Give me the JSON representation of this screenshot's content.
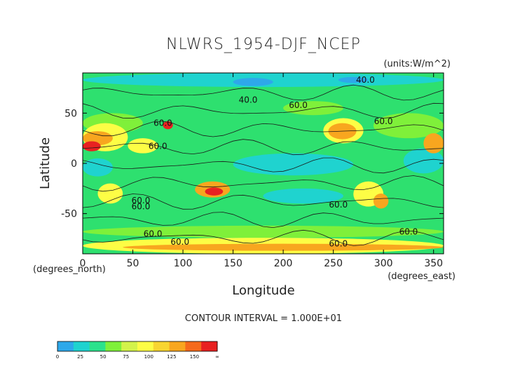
{
  "chart_data": {
    "type": "heatmap",
    "title": "NLWRS_1954-DJF_NCEP",
    "units_label": "(units:W/m^2)",
    "xlabel": "Longitude",
    "ylabel": "Latitude",
    "xunit_label": "(degrees_east)",
    "yunit_label": "(degrees_north)",
    "xlim": [
      0,
      360
    ],
    "ylim": [
      -90,
      90
    ],
    "xticks": [
      0,
      50,
      100,
      150,
      200,
      250,
      300,
      350
    ],
    "yticks": [
      50,
      0,
      -50
    ],
    "contour_interval_text": "CONTOUR INTERVAL = 1.000E+01",
    "contour_labels": [
      {
        "text": "40.0",
        "x": 282,
        "y": 83
      },
      {
        "text": "40.0",
        "x": 165,
        "y": 63
      },
      {
        "text": "60.0",
        "x": 215,
        "y": 58
      },
      {
        "text": "60.0",
        "x": 300,
        "y": 42
      },
      {
        "text": "60.0",
        "x": 80,
        "y": 40
      },
      {
        "text": "60.0",
        "x": 75,
        "y": 17
      },
      {
        "text": "60.0",
        "x": 58,
        "y": -37
      },
      {
        "text": "60.0",
        "x": 58,
        "y": -43
      },
      {
        "text": "60.0",
        "x": 255,
        "y": -41
      },
      {
        "text": "60.0",
        "x": 70,
        "y": -70
      },
      {
        "text": "60.0",
        "x": 325,
        "y": -68
      },
      {
        "text": "60.0",
        "x": 97,
        "y": -78
      },
      {
        "text": "60.0",
        "x": 255,
        "y": -80
      }
    ],
    "colorbar": {
      "colors": [
        "#2ea8ea",
        "#1fd3cf",
        "#2be28c",
        "#7ff03a",
        "#d3f34a",
        "#fdfd45",
        "#f8d530",
        "#f8a61f",
        "#f56a1c",
        "#e82121"
      ],
      "labels": [
        "0",
        "25",
        "50",
        "75",
        "100",
        "125",
        "150",
        "∞"
      ]
    },
    "colors": {
      "base": "#2ee06f",
      "low": "#1fd3cf",
      "lower": "#2ea8ea",
      "mid": "#7ff03a",
      "high": "#fdfd45",
      "higher": "#f8a61f",
      "highest": "#e82121"
    },
    "regions": [
      {
        "level": "low",
        "lon": 0,
        "lat": 90,
        "w": 360,
        "h": 14
      },
      {
        "level": "low",
        "lon": 150,
        "lat": 10,
        "w": 120,
        "h": 22
      },
      {
        "level": "low",
        "lon": 320,
        "lat": 15,
        "w": 40,
        "h": 25
      },
      {
        "level": "low",
        "lon": 0,
        "lat": 5,
        "w": 30,
        "h": 18
      },
      {
        "level": "low",
        "lon": 180,
        "lat": -25,
        "w": 80,
        "h": 15
      },
      {
        "level": "lower",
        "lon": 150,
        "lat": 85,
        "w": 40,
        "h": 8
      },
      {
        "level": "lower",
        "lon": 255,
        "lat": 86,
        "w": 30,
        "h": 6
      },
      {
        "level": "mid",
        "lon": 0,
        "lat": 50,
        "w": 60,
        "h": 20
      },
      {
        "level": "mid",
        "lon": 200,
        "lat": 62,
        "w": 60,
        "h": 14
      },
      {
        "level": "mid",
        "lon": 290,
        "lat": 50,
        "w": 70,
        "h": 25
      },
      {
        "level": "mid",
        "lon": 0,
        "lat": -62,
        "w": 360,
        "h": 12
      },
      {
        "level": "high",
        "lon": 0,
        "lat": 40,
        "w": 45,
        "h": 28
      },
      {
        "level": "high",
        "lon": 45,
        "lat": 25,
        "w": 30,
        "h": 15
      },
      {
        "level": "high",
        "lon": 240,
        "lat": 45,
        "w": 40,
        "h": 25
      },
      {
        "level": "high",
        "lon": 0,
        "lat": -74,
        "w": 360,
        "h": 16
      },
      {
        "level": "high",
        "lon": 270,
        "lat": -18,
        "w": 30,
        "h": 25
      },
      {
        "level": "high",
        "lon": 15,
        "lat": -20,
        "w": 25,
        "h": 20
      },
      {
        "level": "higher",
        "lon": 0,
        "lat": 32,
        "w": 30,
        "h": 14
      },
      {
        "level": "higher",
        "lon": 245,
        "lat": 40,
        "w": 28,
        "h": 16
      },
      {
        "level": "higher",
        "lon": 112,
        "lat": -18,
        "w": 35,
        "h": 16
      },
      {
        "level": "higher",
        "lon": 340,
        "lat": 30,
        "w": 20,
        "h": 20
      },
      {
        "level": "higher",
        "lon": 290,
        "lat": -30,
        "w": 15,
        "h": 15
      },
      {
        "level": "higher",
        "lon": 40,
        "lat": -80,
        "w": 320,
        "h": 7
      },
      {
        "level": "highest",
        "lon": 0,
        "lat": 22,
        "w": 18,
        "h": 10
      },
      {
        "level": "highest",
        "lon": 122,
        "lat": -24,
        "w": 18,
        "h": 8
      },
      {
        "level": "highest",
        "lon": 80,
        "lat": 42,
        "w": 10,
        "h": 8
      }
    ]
  }
}
